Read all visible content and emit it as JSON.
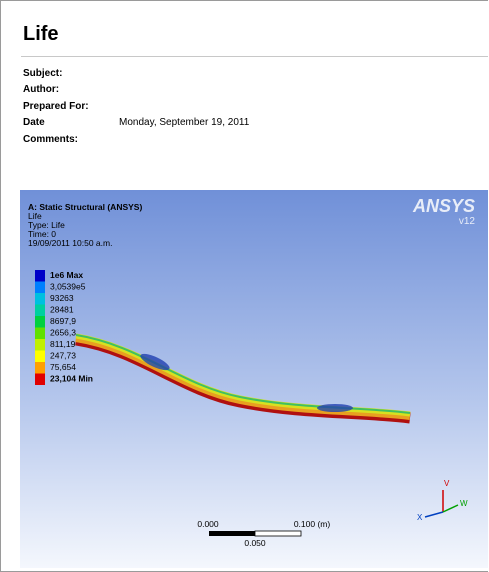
{
  "header": {
    "title": "Life"
  },
  "fields": [
    {
      "label": "Subject:"
    },
    {
      "label": "Author:"
    },
    {
      "label": "Prepared For:"
    },
    {
      "label": "Date",
      "value": "Monday, September 19, 2011"
    },
    {
      "label": "Comments:"
    }
  ],
  "figure": {
    "info": [
      "A: Static Structural (ANSYS)",
      "Life",
      "Type: Life",
      "Time: 0",
      "19/09/2011 10:50 a.m."
    ],
    "legend": [
      "1e6 Max",
      "3,0539e5",
      "93263",
      "28481",
      "8697,9",
      "2656,3",
      "811,19",
      "247,73",
      "75,654",
      "23,104 Min"
    ],
    "logo": "ANSYS",
    "version": "v12",
    "scale": {
      "start": "0.000",
      "end": "0.100 (m)",
      "mid": "0.050"
    },
    "axes": {
      "y": "V",
      "w": "W",
      "x": "X"
    }
  }
}
